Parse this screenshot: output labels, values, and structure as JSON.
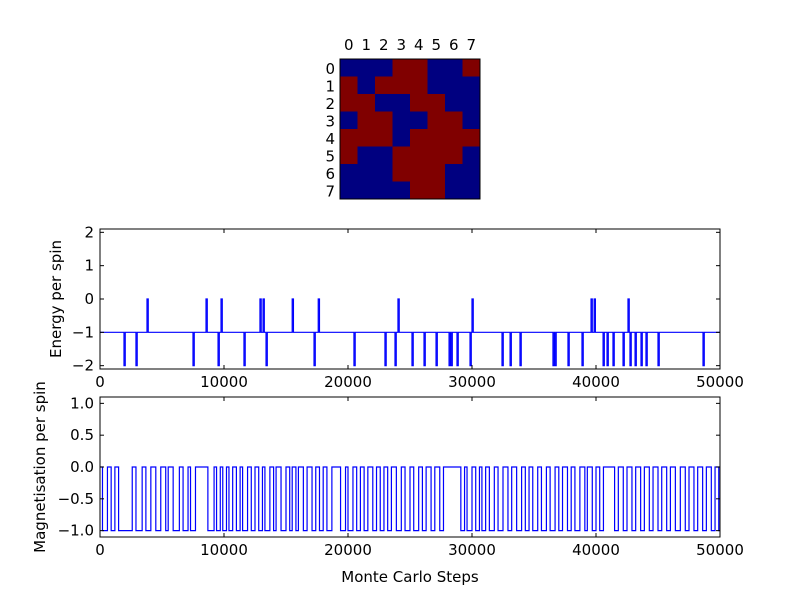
{
  "chart_data": [
    {
      "type": "heatmap",
      "title": "",
      "x_ticks": [
        "0",
        "1",
        "2",
        "3",
        "4",
        "5",
        "6",
        "7"
      ],
      "y_ticks": [
        "0",
        "1",
        "2",
        "3",
        "4",
        "5",
        "6",
        "7"
      ],
      "colors": {
        "1": "#800000",
        "0": "#000080"
      },
      "grid": [
        [
          0,
          0,
          0,
          1,
          1,
          0,
          0,
          1
        ],
        [
          1,
          0,
          1,
          1,
          1,
          0,
          0,
          0
        ],
        [
          1,
          1,
          0,
          0,
          1,
          1,
          0,
          0
        ],
        [
          0,
          1,
          1,
          0,
          0,
          1,
          1,
          0
        ],
        [
          1,
          1,
          1,
          0,
          1,
          1,
          1,
          1
        ],
        [
          1,
          0,
          0,
          1,
          1,
          1,
          1,
          0
        ],
        [
          0,
          0,
          0,
          1,
          1,
          1,
          0,
          0
        ],
        [
          0,
          0,
          0,
          0,
          1,
          1,
          0,
          0
        ]
      ]
    },
    {
      "type": "line",
      "xlabel": "",
      "ylabel": "Energy per spin",
      "xlim": [
        0,
        50000
      ],
      "ylim": [
        -2.1,
        2.1
      ],
      "x_ticks": [
        "0",
        "10000",
        "20000",
        "30000",
        "40000",
        "50000"
      ],
      "y_ticks": [
        "−2",
        "−1",
        "0",
        "1",
        "2"
      ],
      "y_tick_values": [
        -2,
        -1,
        0,
        1,
        2
      ],
      "color": "#0000ff",
      "baseline": -1,
      "spike_width": 100,
      "spikes_up_to_0": [
        3790,
        8550,
        9760,
        12900,
        13150,
        15500,
        17600,
        24030,
        30000,
        39600,
        39850,
        42580
      ],
      "spikes_down_to_minus2": [
        1935,
        2900,
        7500,
        9520,
        11610,
        13390,
        17260,
        20480,
        22980,
        23790,
        25160,
        26130,
        27100,
        28150,
        28310,
        28790,
        29840,
        32420,
        33070,
        33870,
        36530,
        36690,
        37740,
        38870,
        40570,
        40890,
        41370,
        42180,
        42740,
        43150,
        43630,
        44030,
        45000,
        48630
      ]
    },
    {
      "type": "line",
      "xlabel": "Monte Carlo Steps",
      "ylabel": "Magnetisation per spin",
      "xlim": [
        0,
        50000
      ],
      "ylim": [
        -1.1,
        1.1
      ],
      "x_ticks": [
        "0",
        "10000",
        "20000",
        "30000",
        "40000",
        "50000"
      ],
      "y_ticks": [
        "−1.0",
        "−0.5",
        "0.0",
        "0.5",
        "1.0"
      ],
      "y_tick_values": [
        -1,
        -0.5,
        0,
        0.5,
        1
      ],
      "color": "#0000ff",
      "levels": [
        0,
        -1
      ],
      "initial_value": 0,
      "flip_steps": [
        200,
        600,
        900,
        1200,
        1500,
        2600,
        2900,
        3400,
        3700,
        4100,
        4500,
        4900,
        5300,
        5500,
        5900,
        6400,
        6700,
        7100,
        7300,
        7700,
        8700,
        9200,
        9400,
        9700,
        9900,
        10200,
        10400,
        10700,
        11000,
        11300,
        11500,
        11900,
        12200,
        12500,
        12800,
        13100,
        13300,
        13700,
        14000,
        14200,
        14600,
        15000,
        15300,
        15500,
        15800,
        16000,
        16400,
        16700,
        17100,
        17400,
        17700,
        18000,
        18300,
        18700,
        19400,
        19800,
        20000,
        20400,
        20700,
        21000,
        21300,
        21600,
        22000,
        22300,
        22600,
        22900,
        23200,
        23500,
        23900,
        24300,
        24600,
        25000,
        25300,
        25700,
        26000,
        26300,
        26700,
        27000,
        27400,
        27700,
        29100,
        29400,
        29600,
        30000,
        30300,
        30600,
        30800,
        31100,
        31400,
        31800,
        32100,
        32500,
        32900,
        33200,
        33600,
        34000,
        34300,
        34600,
        34900,
        35300,
        35600,
        36000,
        36300,
        36700,
        37000,
        37300,
        37700,
        38000,
        38300,
        38700,
        39100,
        39300,
        39700,
        40000,
        40300,
        40600,
        41500,
        41800,
        42200,
        42500,
        42900,
        43200,
        43600,
        43900,
        44300,
        44600,
        45000,
        45300,
        45700,
        46000,
        46400,
        46800,
        47200,
        47500,
        47900,
        48200,
        48600,
        48900,
        49300,
        49600,
        49900
      ]
    }
  ]
}
